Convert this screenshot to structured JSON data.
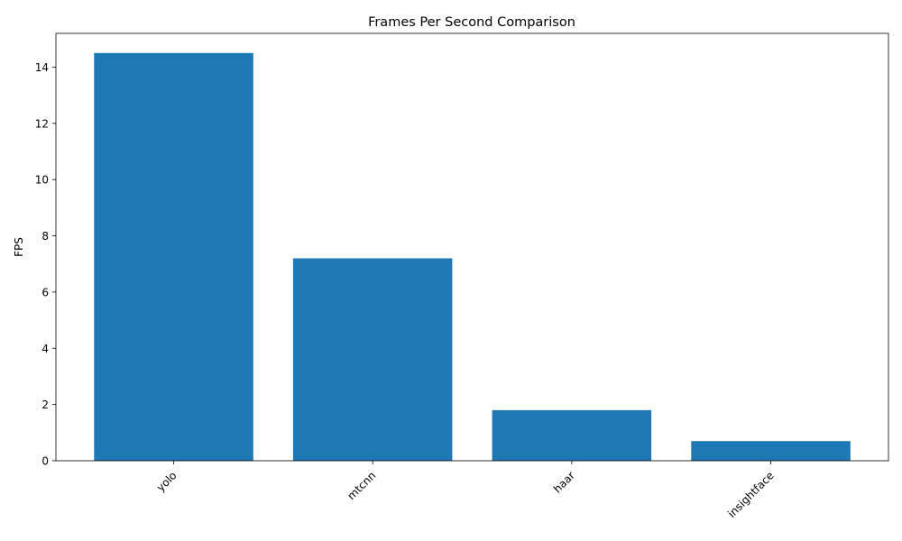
{
  "chart_data": {
    "type": "bar",
    "title": "Frames Per Second Comparison",
    "xlabel": "",
    "ylabel": "FPS",
    "categories": [
      "yolo",
      "mtcnn",
      "haar",
      "insightface"
    ],
    "values": [
      14.5,
      7.2,
      1.8,
      0.7
    ],
    "ylim": [
      0,
      15.2
    ],
    "yticks": [
      0,
      2,
      4,
      6,
      8,
      10,
      12,
      14
    ],
    "x_tick_rotation_deg": 45,
    "grid": false,
    "legend": "none",
    "bar_color": "#1f77b4"
  }
}
